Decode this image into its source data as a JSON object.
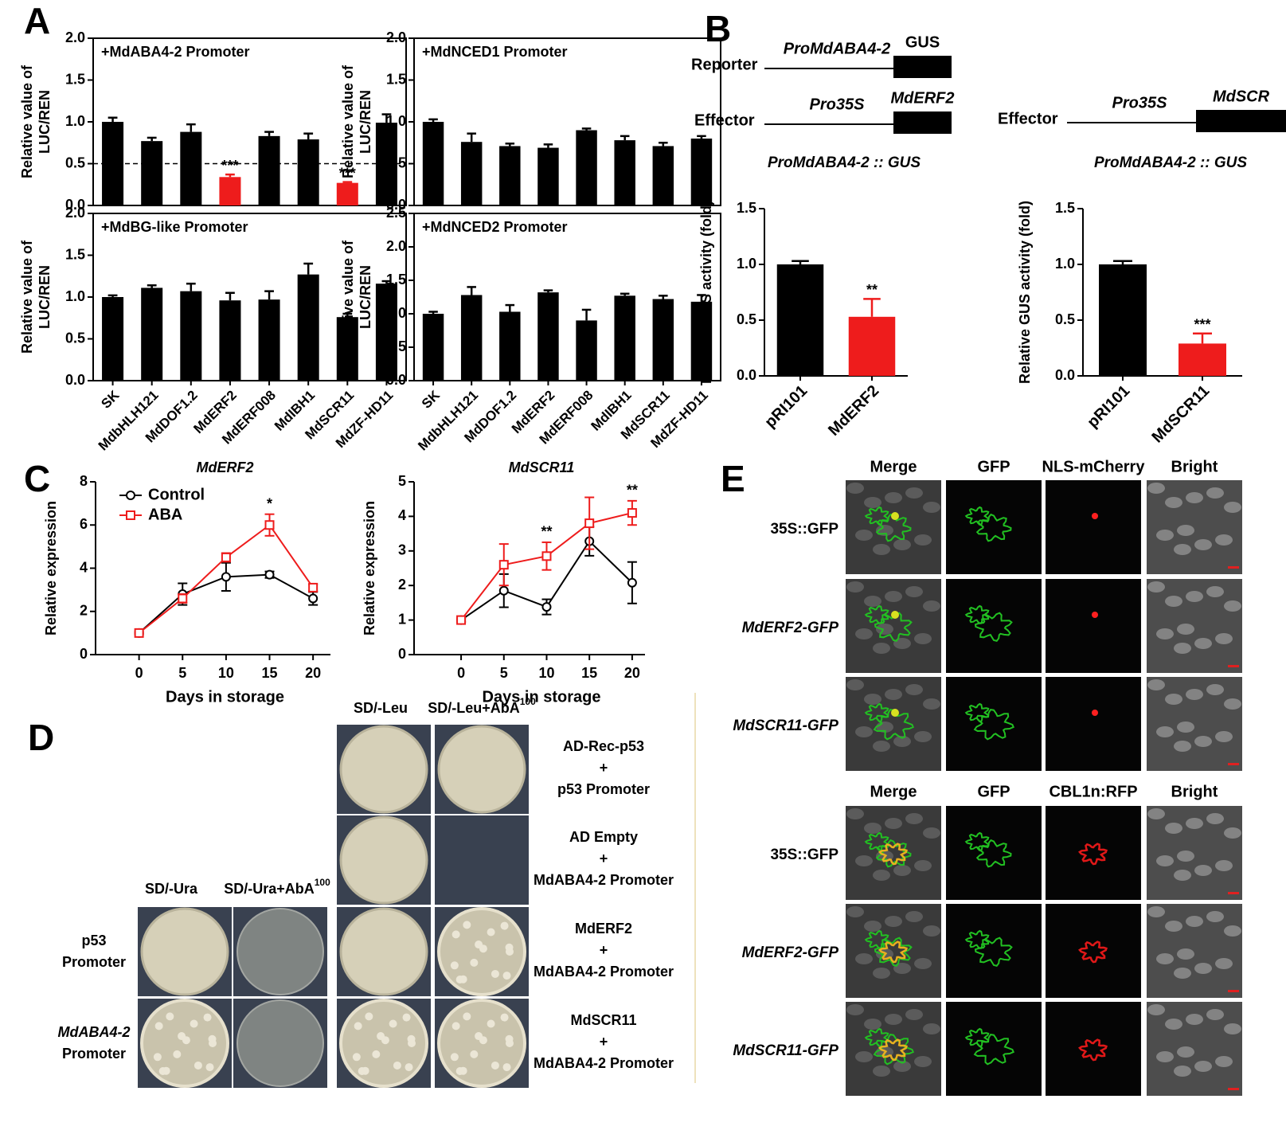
{
  "panel_labels": [
    "A",
    "B",
    "C",
    "D",
    "E"
  ],
  "chart_data": [
    {
      "type": "bar",
      "title": "+MdABA4-2 Promoter",
      "ylabel": [
        "Relative value of",
        "LUC/REN"
      ],
      "frame": true,
      "categories": [
        null,
        null,
        null,
        null,
        null,
        null,
        null,
        null
      ],
      "values": [
        1.0,
        0.77,
        0.88,
        0.34,
        0.83,
        0.79,
        0.27,
        0.99
      ],
      "errors": [
        0.05,
        0.04,
        0.09,
        0.03,
        0.05,
        0.07,
        0.01,
        0.1
      ],
      "colors": [
        "#000000",
        "#000000",
        "#000000",
        "#ee1c1c",
        "#000000",
        "#000000",
        "#ee1c1c",
        "#000000"
      ],
      "annotations": [
        null,
        null,
        null,
        "***",
        null,
        null,
        "***",
        null
      ],
      "reference_line": 0.5,
      "ylim": [
        0,
        2
      ],
      "yticks": [
        {
          "value": 0,
          "label": "0.0"
        },
        0.5,
        {
          "value": 1,
          "label": "1.0"
        },
        1.5,
        {
          "value": 2,
          "label": "2.0"
        }
      ]
    },
    {
      "type": "bar",
      "title": "+MdNCED1 Promoter",
      "ylabel": [
        "Relative value of",
        "LUC/REN"
      ],
      "frame": true,
      "categories": [
        null,
        null,
        null,
        null,
        null,
        null,
        null,
        null
      ],
      "values": [
        1.0,
        0.76,
        0.71,
        0.69,
        0.9,
        0.78,
        0.71,
        0.8
      ],
      "errors": [
        0.03,
        0.1,
        0.03,
        0.04,
        0.02,
        0.05,
        0.04,
        0.03
      ],
      "colors": [
        "#000000",
        "#000000",
        "#000000",
        "#000000",
        "#000000",
        "#000000",
        "#000000",
        "#000000"
      ],
      "annotations": [
        null,
        null,
        null,
        null,
        null,
        null,
        null,
        null
      ],
      "ylim": [
        0,
        2
      ],
      "yticks": [
        {
          "value": 0,
          "label": "0.0"
        },
        0.5,
        {
          "value": 1,
          "label": "1.0"
        },
        1.5,
        {
          "value": 2,
          "label": "2.0"
        }
      ]
    },
    {
      "type": "bar",
      "title": "+MdBG-like Promoter",
      "ylabel": [
        "Relative value of",
        "LUC/REN"
      ],
      "frame": true,
      "categories": [
        "SK",
        "MdbHLH121",
        "MdDOF1.2",
        "MdERF2",
        "MdERF008",
        "MdIBH1",
        "MdSCR11",
        "MdZF-HD11"
      ],
      "values": [
        1.0,
        1.11,
        1.07,
        0.96,
        0.97,
        1.27,
        0.76,
        1.16
      ],
      "errors": [
        0.02,
        0.03,
        0.09,
        0.09,
        0.1,
        0.13,
        0.04,
        0.03
      ],
      "colors": [
        "#000000",
        "#000000",
        "#000000",
        "#000000",
        "#000000",
        "#000000",
        "#000000",
        "#000000"
      ],
      "annotations": [
        null,
        null,
        null,
        null,
        null,
        null,
        null,
        null
      ],
      "ylim": [
        0,
        2
      ],
      "yticks": [
        {
          "value": 0,
          "label": "0.0"
        },
        0.5,
        {
          "value": 1,
          "label": "1.0"
        },
        1.5,
        {
          "value": 2,
          "label": "2.0"
        }
      ]
    },
    {
      "type": "bar",
      "title": "+MdNCED2 Promoter",
      "ylabel": [
        "Relative value of",
        "LUC/REN"
      ],
      "frame": true,
      "categories": [
        "SK",
        "MdbHLH121",
        "MdDOF1.2",
        "MdERF2",
        "MdERF008",
        "MdIBH1",
        "MdSCR11",
        "MdZF-HD11"
      ],
      "values": [
        1.0,
        1.28,
        1.03,
        1.32,
        0.9,
        1.27,
        1.22,
        1.18
      ],
      "errors": [
        0.03,
        0.12,
        0.1,
        0.03,
        0.16,
        0.03,
        0.05,
        0.1
      ],
      "colors": [
        "#000000",
        "#000000",
        "#000000",
        "#000000",
        "#000000",
        "#000000",
        "#000000",
        "#000000"
      ],
      "annotations": [
        null,
        null,
        null,
        null,
        null,
        null,
        null,
        null
      ],
      "ylim": [
        0,
        2.5
      ],
      "yticks": [
        {
          "value": 0,
          "label": "0.0"
        },
        0.5,
        {
          "value": 1,
          "label": "1.0"
        },
        1.5,
        {
          "value": 2,
          "label": "2.0"
        },
        2.5
      ]
    },
    {
      "type": "bar",
      "title": "ProMdABA4-2 :: GUS",
      "ylabel": [
        "Relative GUS activity (fold)"
      ],
      "frame": false,
      "categories": [
        "pRI101",
        "MdERF2"
      ],
      "values": [
        1.0,
        0.53
      ],
      "errors": [
        0.03,
        0.16
      ],
      "colors": [
        "#000000",
        "#ee1c1c"
      ],
      "annotations": [
        null,
        "**"
      ],
      "ylim": [
        0,
        1.5
      ],
      "yticks": [
        {
          "value": 0,
          "label": "0.0"
        },
        0.5,
        {
          "value": 1,
          "label": "1.0"
        },
        1.5
      ]
    },
    {
      "type": "bar",
      "title": "ProMdABA4-2 :: GUS",
      "ylabel": [
        "Relative GUS activity (fold)"
      ],
      "frame": false,
      "categories": [
        "pRI101",
        "MdSCR11"
      ],
      "values": [
        1.0,
        0.29
      ],
      "errors": [
        0.03,
        0.09
      ],
      "colors": [
        "#000000",
        "#ee1c1c"
      ],
      "annotations": [
        null,
        "***"
      ],
      "ylim": [
        0,
        1.5
      ],
      "yticks": [
        {
          "value": 0,
          "label": "0.0"
        },
        0.5,
        {
          "value": 1,
          "label": "1.0"
        },
        1.5
      ]
    },
    {
      "type": "line",
      "title": "MdERF2",
      "xlabel": "Days in storage",
      "ylabel": "Relative expression",
      "legend": "upper left",
      "x": [
        0,
        5,
        10,
        15,
        20
      ],
      "xlim": [
        -5,
        22
      ],
      "xticks": [
        0,
        5,
        10,
        15,
        20
      ],
      "ylim": [
        0,
        8
      ],
      "yticks": [
        0,
        2,
        4,
        6,
        8
      ],
      "series": [
        {
          "name": "Control",
          "color": "#000000",
          "marker": "circle",
          "values": [
            1.0,
            2.8,
            3.6,
            3.7,
            2.6
          ],
          "errors": [
            0.05,
            0.5,
            0.65,
            0.15,
            0.3
          ]
        },
        {
          "name": "ABA",
          "color": "#ee1c1c",
          "marker": "square",
          "values": [
            1.0,
            2.6,
            4.5,
            6.0,
            3.1
          ],
          "errors": [
            0.05,
            0.2,
            0.2,
            0.5,
            0.15
          ]
        }
      ],
      "annotations": [
        null,
        null,
        null,
        "*",
        null
      ]
    },
    {
      "type": "line",
      "title": "MdSCR11",
      "xlabel": "Days in storage",
      "ylabel": "Relative expression",
      "legend": null,
      "x": [
        0,
        5,
        10,
        15,
        20
      ],
      "xlim": [
        -5.5,
        21.5
      ],
      "xticks": [
        0,
        5,
        10,
        15,
        20
      ],
      "ylim": [
        0,
        5
      ],
      "yticks": [
        0,
        1,
        2,
        3,
        4,
        5
      ],
      "series": [
        {
          "name": "Control",
          "color": "#000000",
          "marker": "circle",
          "values": [
            1.0,
            1.85,
            1.38,
            3.28,
            2.08
          ],
          "errors": [
            0.05,
            0.48,
            0.22,
            0.42,
            0.6
          ]
        },
        {
          "name": "ABA",
          "color": "#ee1c1c",
          "marker": "square",
          "values": [
            1.0,
            2.6,
            2.85,
            3.8,
            4.1
          ],
          "errors": [
            0.05,
            0.6,
            0.4,
            0.75,
            0.35
          ]
        }
      ],
      "annotations": [
        null,
        null,
        "**",
        null,
        "**"
      ]
    }
  ],
  "panel_b": {
    "reporter": {
      "label": "Reporter",
      "promoter": "ProMdABA4-2",
      "gene": "GUS"
    },
    "effectors": [
      {
        "label": "Effector",
        "promoter": "Pro35S",
        "gene": "MdERF2"
      },
      {
        "label": "Effector",
        "promoter": "Pro35S",
        "gene": "MdSCR"
      }
    ]
  },
  "panel_d": {
    "leu_headers": {
      "plain": "SD/-Leu",
      "aba": "SD/-Leu+AbA",
      "aba_sup": "100"
    },
    "ura_headers": {
      "plain": "SD/-Ura",
      "aba": "SD/-Ura+AbA",
      "aba_sup": "100"
    },
    "combinations": [
      [
        "AD-Rec-p53",
        "+",
        "p53 Promoter"
      ],
      [
        "AD Empty",
        "+",
        "MdABA4-2 Promoter"
      ],
      [
        "MdERF2",
        "+",
        "MdABA4-2 Promoter"
      ],
      [
        "MdSCR11",
        "+",
        "MdABA4-2 Promoter"
      ]
    ],
    "promoters": [
      [
        "p53",
        "Promoter"
      ],
      [
        "MdABA4-2",
        "Promoter"
      ]
    ]
  },
  "panel_e": {
    "blocks": [
      {
        "columns": [
          "Merge",
          "GFP",
          "NLS-mCherry",
          "Bright"
        ],
        "rows": [
          "35S::GFP",
          "MdERF2-GFP",
          "MdSCR11-GFP"
        ]
      },
      {
        "columns": [
          "Merge",
          "GFP",
          "CBL1n:RFP",
          "Bright"
        ],
        "rows": [
          "35S::GFP",
          "MdERF2-GFP",
          "MdSCR11-GFP"
        ]
      }
    ]
  }
}
